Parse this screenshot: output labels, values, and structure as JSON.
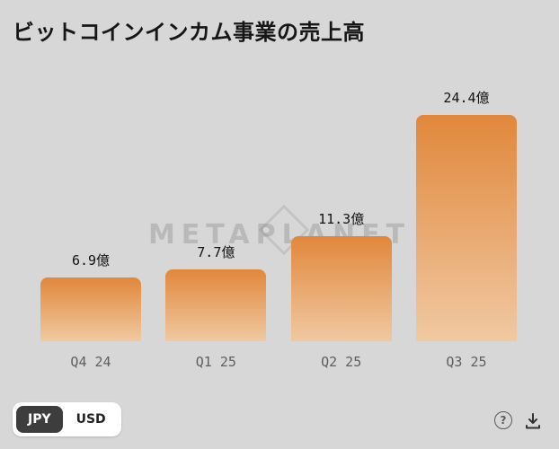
{
  "page": {
    "background": "#d7d7d7"
  },
  "header": {
    "title": "ビットコインインカム事業の売上高"
  },
  "watermark": {
    "text": "METAPLANET"
  },
  "chart_data": {
    "type": "bar",
    "title": "ビットコインインカム事業の売上高",
    "categories": [
      "Q4 24",
      "Q1 25",
      "Q2 25",
      "Q3 25"
    ],
    "values": [
      6.9,
      7.7,
      11.3,
      24.4
    ],
    "value_labels": [
      "6.9億",
      "7.7億",
      "11.3億",
      "24.4億"
    ],
    "unit": "億",
    "ylim": [
      0,
      24.4
    ],
    "grid": false,
    "legend": false,
    "bar_gradient_top": "#e1873b",
    "bar_gradient_bottom": "#f0c9a2"
  },
  "controls": {
    "currency_toggle": {
      "options": [
        "JPY",
        "USD"
      ],
      "selected": "JPY"
    },
    "help_glyph": "?"
  }
}
